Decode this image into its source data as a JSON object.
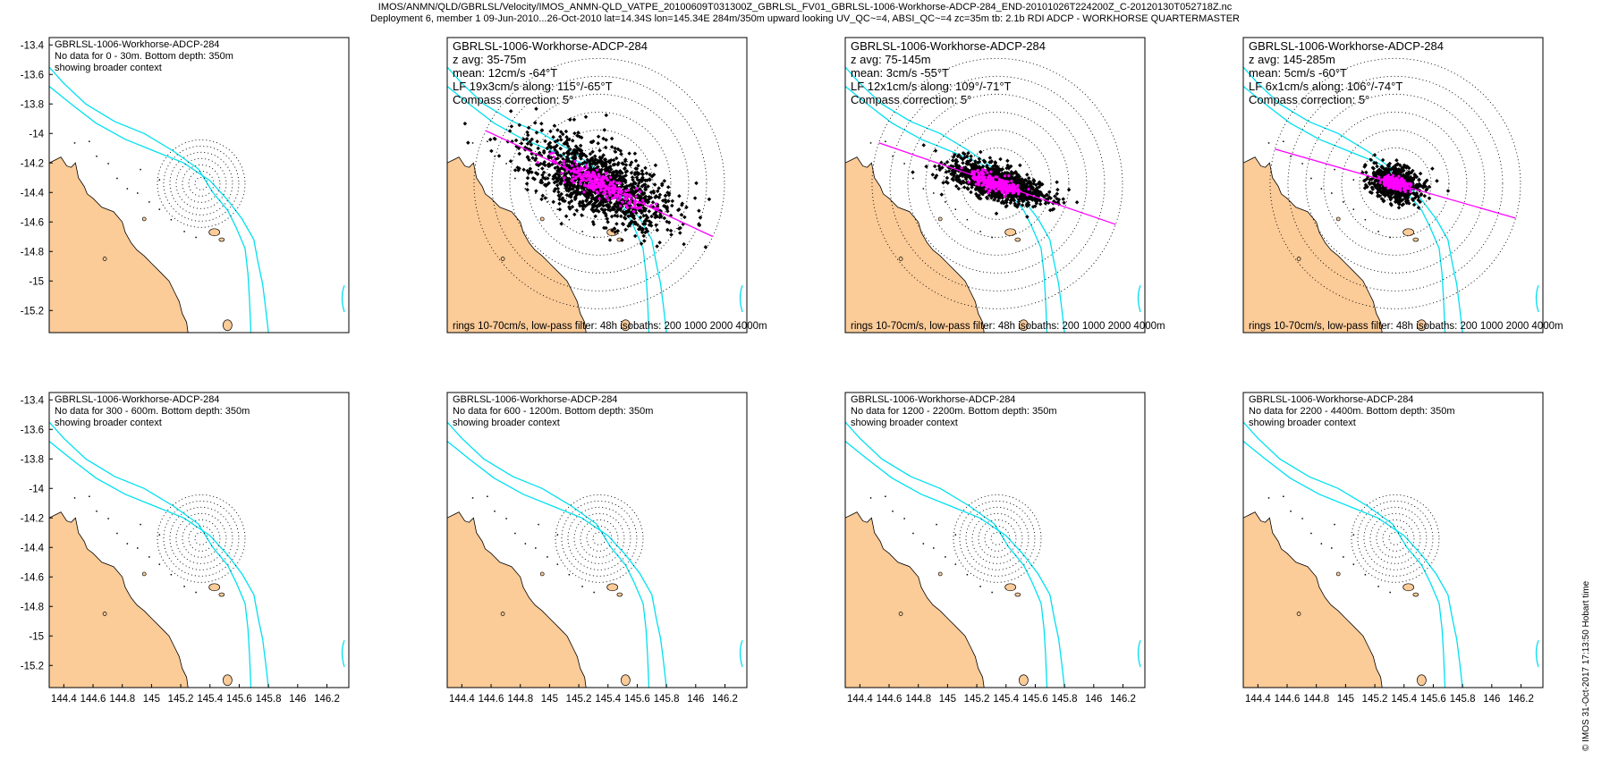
{
  "header": {
    "line1": "IMOS/ANMN/QLD/GBRLSL/Velocity/IMOS_ANMN-QLD_VATPE_20100609T031300Z_GBRLSL_FV01_GBRLSL-1006-Workhorse-ADCP-284_END-20101026T224200Z_C-20120130T052718Z.nc",
    "line2": "Deployment 6, member 1 09-Jun-2010...26-Oct-2010 lat=14.34S lon=145.34E 284m/350m upward looking UV_QC~=4, ABSI_QC~=4 zc=35m tb: 2.1b RDI ADCP - WORKHORSE QUARTERMASTER"
  },
  "footer_text": "© IMOS 31-Oct-2017 17:13:50 Hobart time",
  "axes": {
    "lon_range": [
      144.3,
      146.35
    ],
    "lat_range": [
      -15.35,
      -13.35
    ],
    "y_ticks": [
      "-13.4",
      "-13.6",
      "-13.8",
      "-14",
      "-14.2",
      "-14.4",
      "-14.6",
      "-14.8",
      "-15",
      "-15.2"
    ],
    "y_tick_values": [
      -13.4,
      -13.6,
      -13.8,
      -14,
      -14.2,
      -14.4,
      -14.6,
      -14.8,
      -15,
      -15.2
    ],
    "x_ticks": [
      "144.4",
      "144.6",
      "144.8",
      "145",
      "145.2",
      "145.4",
      "145.6",
      "145.8",
      "146",
      "146.2"
    ],
    "x_tick_values": [
      144.4,
      144.6,
      144.8,
      145,
      145.2,
      145.4,
      145.6,
      145.8,
      146,
      146.2
    ]
  },
  "site": {
    "lon": 145.34,
    "lat": -14.34
  },
  "colors": {
    "land": "#fbcb98",
    "isobath": "#00e0f0",
    "scatter": "#000000",
    "lowpass": "#ff00ff",
    "rings": "#000000"
  },
  "panels": [
    {
      "id": "p1",
      "has_data": false,
      "lines": [
        "GBRLSL-1006-Workhorse-ADCP-284",
        "No data for 0 - 30m. Bottom depth: 350m",
        "showing broader context"
      ],
      "footer": ""
    },
    {
      "id": "p2",
      "has_data": true,
      "lines": [
        "GBRLSL-1006-Workhorse-ADCP-284",
        "z avg: 35-75m",
        "mean: 12cm/s -64°T",
        "LF 19x3cm/s along: 115°/-65°T",
        "Compass correction: 5°"
      ],
      "footer": "rings 10-70cm/s, low-pass filter: 48h isobaths: 200 1000 2000 4000m",
      "ellipse": {
        "major": 19,
        "minor": 3,
        "along_deg_T": 115,
        "n_points": 1300,
        "lowpass_spread": 6
      }
    },
    {
      "id": "p3",
      "has_data": true,
      "lines": [
        "GBRLSL-1006-Workhorse-ADCP-284",
        "z avg: 75-145m",
        "mean: 3cm/s -55°T",
        "LF 12x1cm/s along: 109°/-71°T",
        "Compass correction: 5°"
      ],
      "footer": "rings 10-70cm/s, low-pass filter: 48h isobaths: 200 1000 2000 4000m",
      "ellipse": {
        "major": 12,
        "minor": 1,
        "along_deg_T": 109,
        "n_points": 1100,
        "lowpass_spread": 4
      }
    },
    {
      "id": "p4",
      "has_data": true,
      "lines": [
        "GBRLSL-1006-Workhorse-ADCP-284",
        "z avg: 145-285m",
        "mean: 5cm/s -60°T",
        "LF 6x1cm/s along: 106°/-74°T",
        "Compass correction: 5°"
      ],
      "footer": "rings 10-70cm/s, low-pass filter: 48h isobaths: 200 1000 2000 4000m",
      "ellipse": {
        "major": 6,
        "minor": 1,
        "along_deg_T": 106,
        "n_points": 700,
        "lowpass_spread": 2
      }
    },
    {
      "id": "p5",
      "has_data": false,
      "lines": [
        "GBRLSL-1006-Workhorse-ADCP-284",
        "No data for 300 - 600m. Bottom depth: 350m",
        "showing broader context"
      ],
      "footer": ""
    },
    {
      "id": "p6",
      "has_data": false,
      "lines": [
        "GBRLSL-1006-Workhorse-ADCP-284",
        "No data for 600 - 1200m. Bottom depth: 350m",
        "showing broader context"
      ],
      "footer": ""
    },
    {
      "id": "p7",
      "has_data": false,
      "lines": [
        "GBRLSL-1006-Workhorse-ADCP-284",
        "No data for 1200 - 2200m. Bottom depth: 350m",
        "showing broader context"
      ],
      "footer": ""
    },
    {
      "id": "p8",
      "has_data": false,
      "lines": [
        "GBRLSL-1006-Workhorse-ADCP-284",
        "No data for 2200 - 4400m. Bottom depth: 350m",
        "showing broader context"
      ],
      "footer": ""
    }
  ]
}
